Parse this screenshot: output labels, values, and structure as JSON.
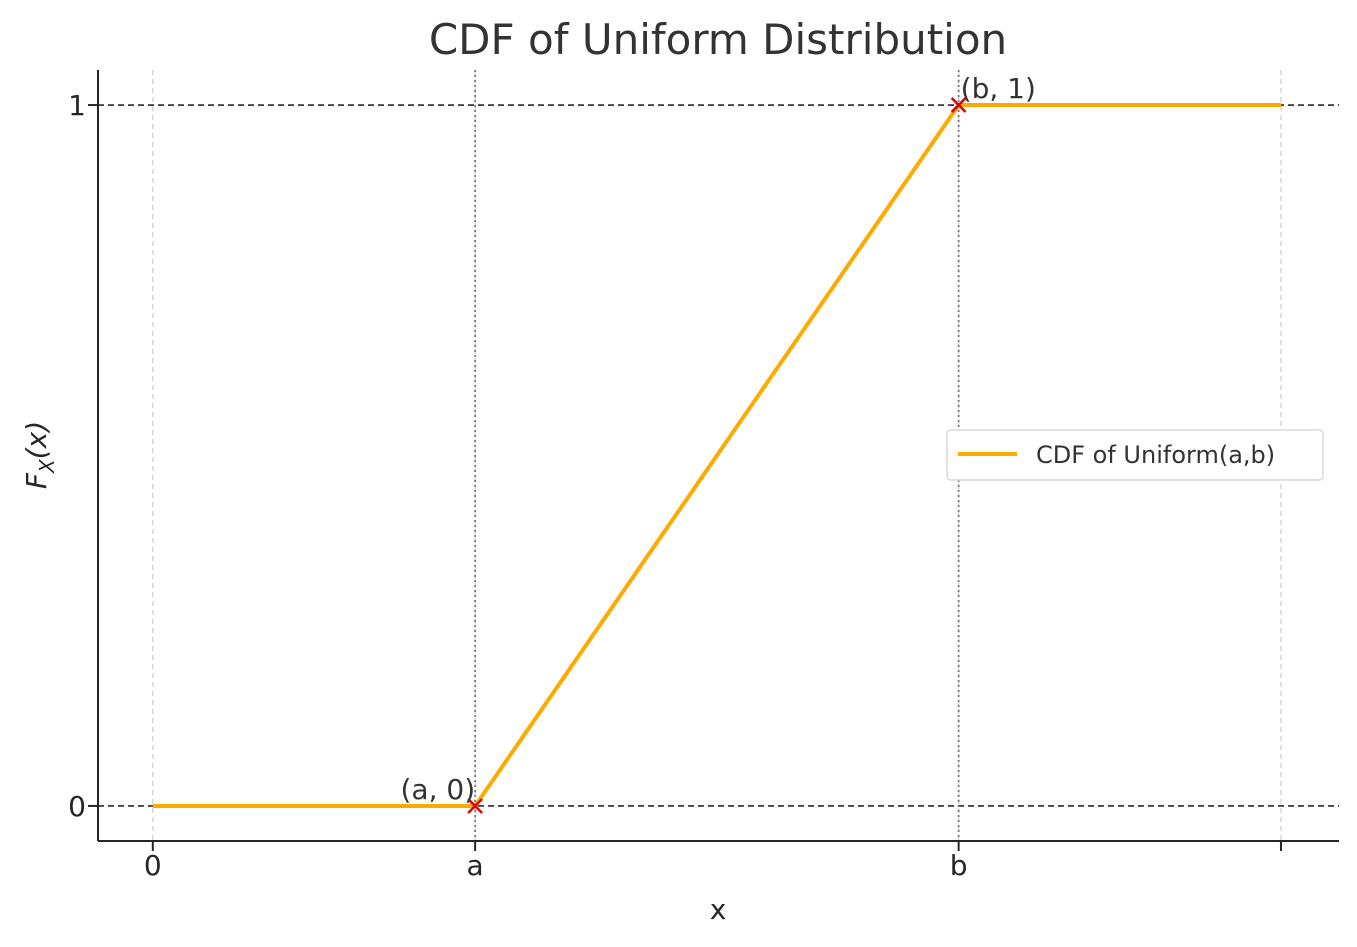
{
  "chart_data": {
    "type": "line",
    "title": "CDF of Uniform Distribution",
    "xlabel": "x",
    "ylabel": {
      "main": "F",
      "sub": "X",
      "arg": "(x)"
    },
    "x_ticks": [
      {
        "value": 0,
        "label": "0"
      },
      {
        "value": 1,
        "label": "a"
      },
      {
        "value": 2.5,
        "label": "b"
      },
      {
        "value": 3.5,
        "label": ""
      }
    ],
    "y_ticks": [
      {
        "value": 0,
        "label": "0"
      },
      {
        "value": 1,
        "label": "1"
      }
    ],
    "xlim": [
      -0.17,
      3.68
    ],
    "ylim": [
      -0.05,
      1.05
    ],
    "series": [
      {
        "name": "CDF of Uniform(a,b)",
        "color": "#FFAA00",
        "x": [
          0,
          1,
          2.5,
          3.5
        ],
        "y": [
          0,
          0,
          1,
          1
        ]
      }
    ],
    "markers": [
      {
        "x": 1,
        "y": 0,
        "label": "(a, 0)",
        "color": "#E00000",
        "symbol": "x"
      },
      {
        "x": 2.5,
        "y": 1,
        "label": "(b, 1)",
        "color": "#E00000",
        "symbol": "x"
      }
    ],
    "reference_lines": {
      "horizontal": [
        0,
        1
      ],
      "vertical": [
        1,
        2.5
      ]
    },
    "grid": "vertical dashed at x ticks",
    "legend_position": "center-right"
  }
}
